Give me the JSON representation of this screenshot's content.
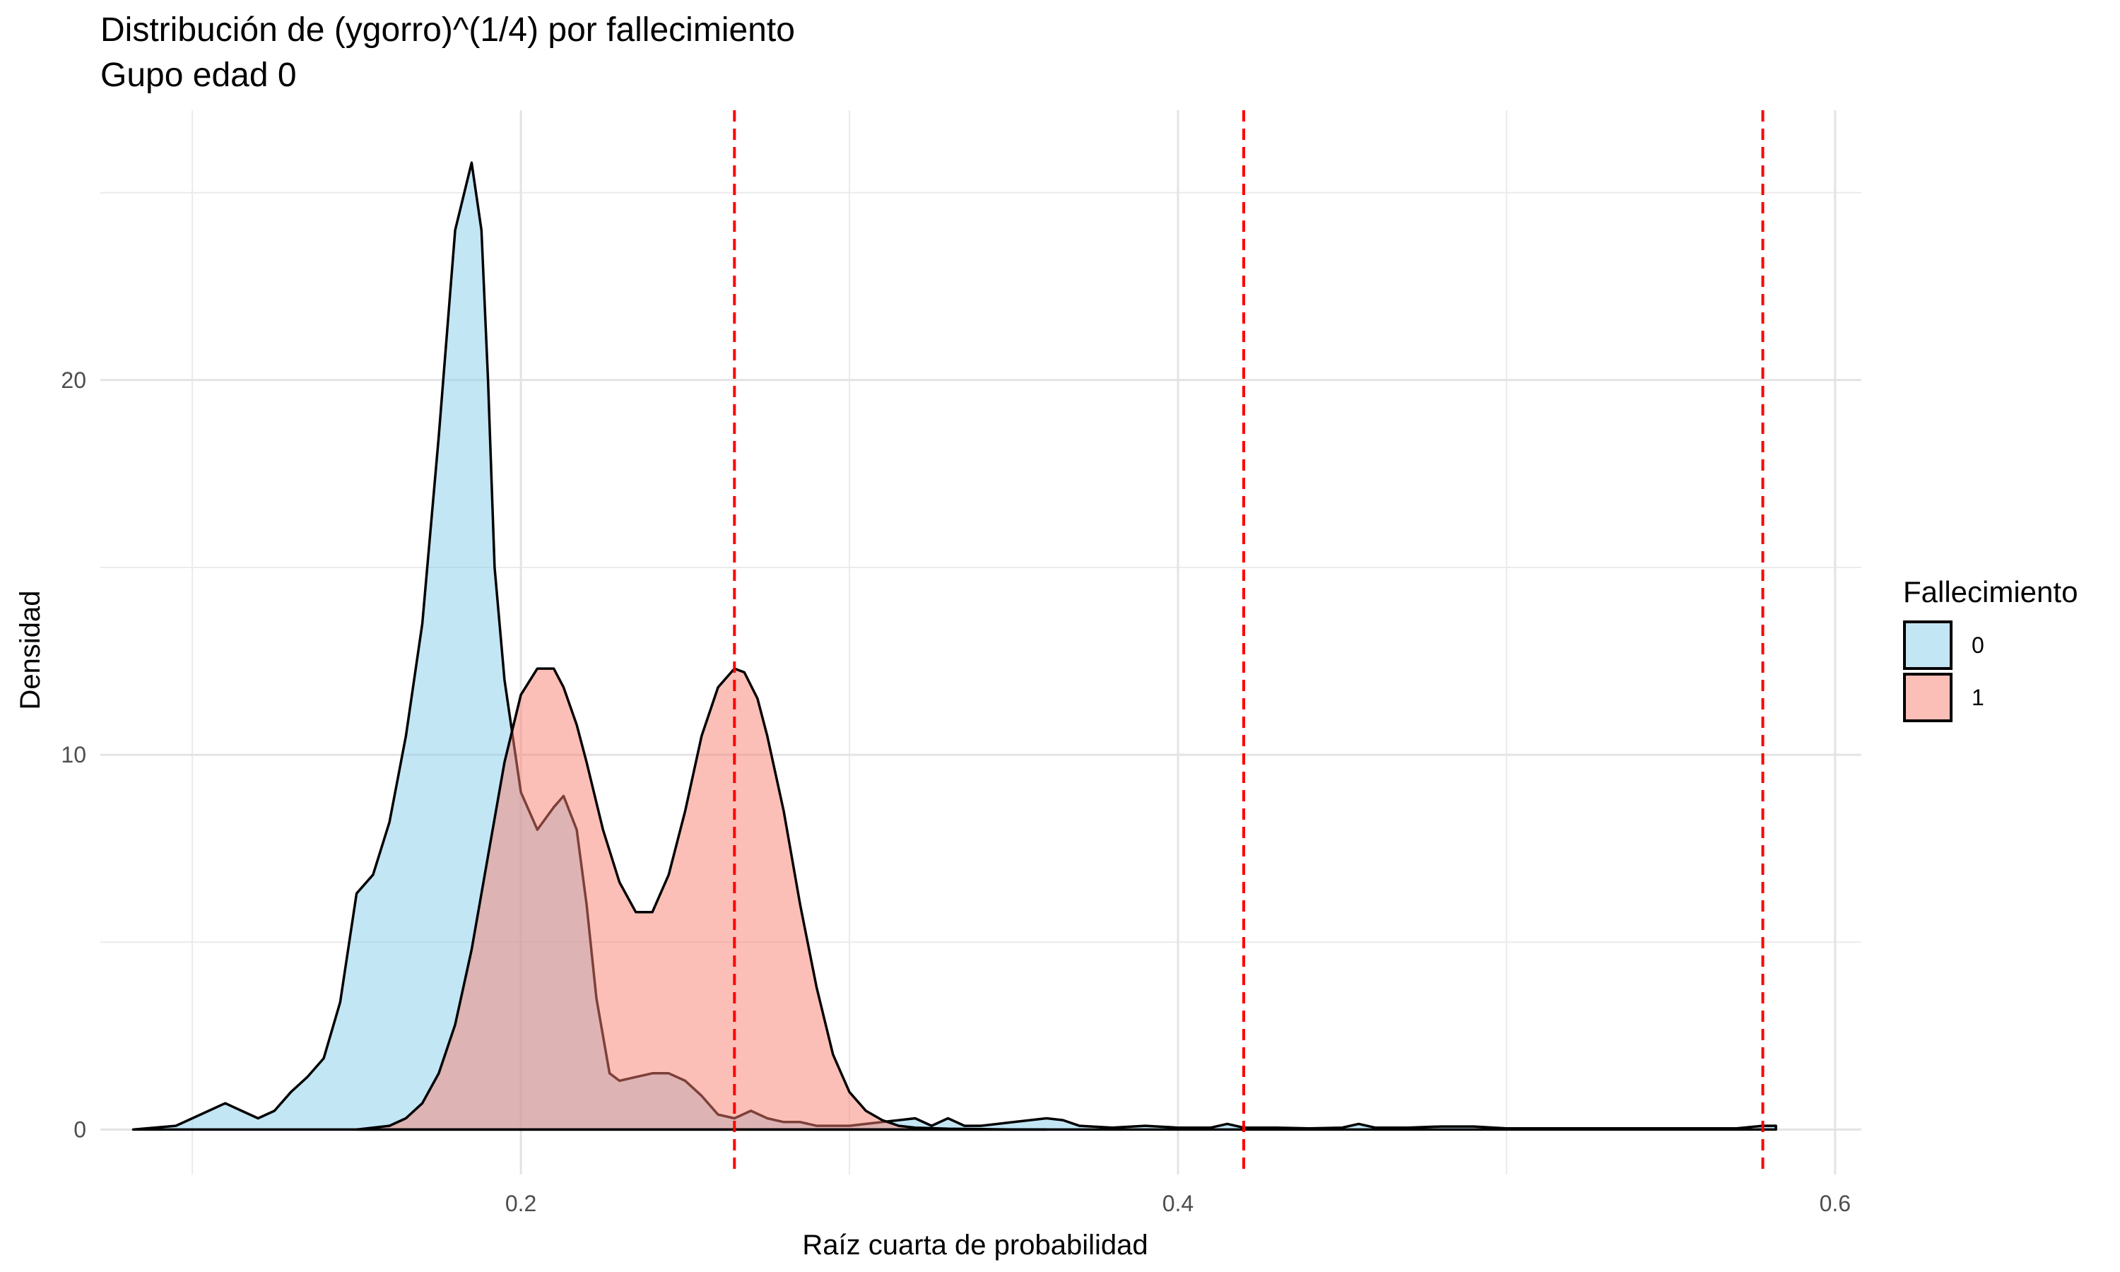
{
  "chart_data": {
    "type": "area",
    "title": "Distribución de (ygorro)^(1/4) por fallecimiento",
    "subtitle": "Gupo edad 0",
    "xlabel": "Raíz cuarta de probabilidad",
    "ylabel": "Densidad",
    "xlim": [
      0.072,
      0.608
    ],
    "ylim": [
      -1.2,
      27.2
    ],
    "x_ticks": [
      0.2,
      0.4,
      0.6
    ],
    "x_tick_labels": [
      "0.2",
      "0.4",
      "0.6"
    ],
    "x_minor": [
      0.1,
      0.3,
      0.5
    ],
    "y_ticks": [
      0,
      10,
      20
    ],
    "y_tick_labels": [
      "0",
      "10",
      "20"
    ],
    "y_minor": [
      5,
      15,
      25
    ],
    "grid": true,
    "legend": {
      "title": "Fallecimiento",
      "position": "right"
    },
    "vlines": [
      0.265,
      0.42,
      0.578
    ],
    "vline_color": "#ff0000",
    "series": [
      {
        "name": "0",
        "color": "#87ceeb",
        "opacity": 0.5,
        "x": [
          0.082,
          0.095,
          0.105,
          0.11,
          0.115,
          0.12,
          0.125,
          0.13,
          0.135,
          0.14,
          0.145,
          0.15,
          0.155,
          0.16,
          0.165,
          0.17,
          0.175,
          0.18,
          0.185,
          0.188,
          0.19,
          0.192,
          0.195,
          0.2,
          0.205,
          0.21,
          0.213,
          0.217,
          0.22,
          0.223,
          0.227,
          0.23,
          0.235,
          0.24,
          0.245,
          0.25,
          0.255,
          0.26,
          0.265,
          0.27,
          0.275,
          0.28,
          0.285,
          0.29,
          0.3,
          0.31,
          0.32,
          0.325,
          0.33,
          0.335,
          0.34,
          0.35,
          0.36,
          0.365,
          0.37,
          0.38,
          0.39,
          0.4,
          0.41,
          0.415,
          0.42,
          0.43,
          0.44,
          0.45,
          0.455,
          0.46,
          0.47,
          0.48,
          0.49,
          0.5,
          0.51,
          0.52,
          0.53,
          0.54,
          0.55,
          0.56,
          0.57,
          0.578,
          0.582
        ],
        "y": [
          0.0,
          0.1,
          0.5,
          0.7,
          0.5,
          0.3,
          0.5,
          1.0,
          1.4,
          1.9,
          3.4,
          6.3,
          6.8,
          8.2,
          10.5,
          13.5,
          18.5,
          24.0,
          25.8,
          24.0,
          20.0,
          15.0,
          12.0,
          9.0,
          8.0,
          8.6,
          8.9,
          8.0,
          6.0,
          3.5,
          1.5,
          1.3,
          1.4,
          1.5,
          1.5,
          1.3,
          0.9,
          0.4,
          0.3,
          0.5,
          0.3,
          0.2,
          0.2,
          0.1,
          0.1,
          0.2,
          0.3,
          0.1,
          0.3,
          0.1,
          0.1,
          0.2,
          0.3,
          0.25,
          0.1,
          0.05,
          0.1,
          0.05,
          0.05,
          0.15,
          0.05,
          0.05,
          0.03,
          0.05,
          0.15,
          0.05,
          0.05,
          0.08,
          0.08,
          0.03,
          0.03,
          0.03,
          0.03,
          0.03,
          0.03,
          0.03,
          0.03,
          0.1,
          0.1
        ]
      },
      {
        "name": "1",
        "color": "#fa8072",
        "opacity": 0.5,
        "x": [
          0.15,
          0.16,
          0.165,
          0.17,
          0.175,
          0.18,
          0.185,
          0.19,
          0.195,
          0.2,
          0.205,
          0.21,
          0.213,
          0.217,
          0.22,
          0.225,
          0.23,
          0.235,
          0.24,
          0.245,
          0.25,
          0.255,
          0.26,
          0.265,
          0.268,
          0.272,
          0.275,
          0.28,
          0.285,
          0.29,
          0.295,
          0.3,
          0.305,
          0.31,
          0.315,
          0.32,
          0.33,
          0.34,
          0.35,
          0.36
        ],
        "y": [
          0.0,
          0.1,
          0.3,
          0.7,
          1.5,
          2.8,
          4.8,
          7.3,
          9.8,
          11.6,
          12.3,
          12.3,
          11.8,
          10.8,
          9.8,
          8.0,
          6.6,
          5.8,
          5.8,
          6.8,
          8.5,
          10.5,
          11.8,
          12.3,
          12.2,
          11.5,
          10.5,
          8.5,
          6.0,
          3.8,
          2.0,
          1.0,
          0.5,
          0.25,
          0.1,
          0.05,
          0.02,
          0.01,
          0.0,
          0.0
        ]
      }
    ]
  }
}
